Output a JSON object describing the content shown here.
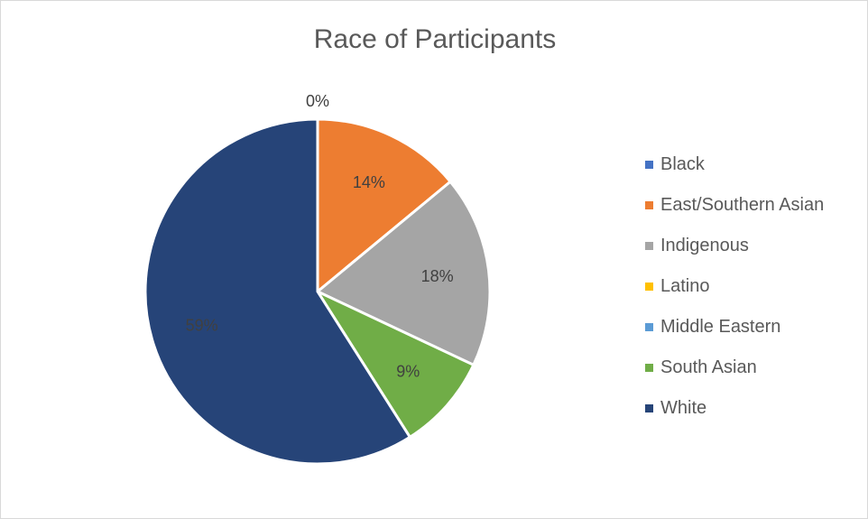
{
  "chart_data": {
    "type": "pie",
    "title": "Race of Participants",
    "categories": [
      "Black",
      "East/Southern Asian",
      "Indigenous",
      "Latino",
      "Middle Eastern",
      "South Asian",
      "White"
    ],
    "values": [
      0,
      14,
      18,
      0,
      0,
      9,
      59
    ],
    "data_labels": [
      "",
      "14%",
      "18%",
      "",
      "",
      "9%",
      "59%"
    ],
    "top_label": "0%",
    "colors": [
      "#4472c4",
      "#ed7d31",
      "#a5a5a5",
      "#ffc000",
      "#5b9bd5",
      "#70ad47",
      "#264478"
    ],
    "legend_position": "right"
  }
}
